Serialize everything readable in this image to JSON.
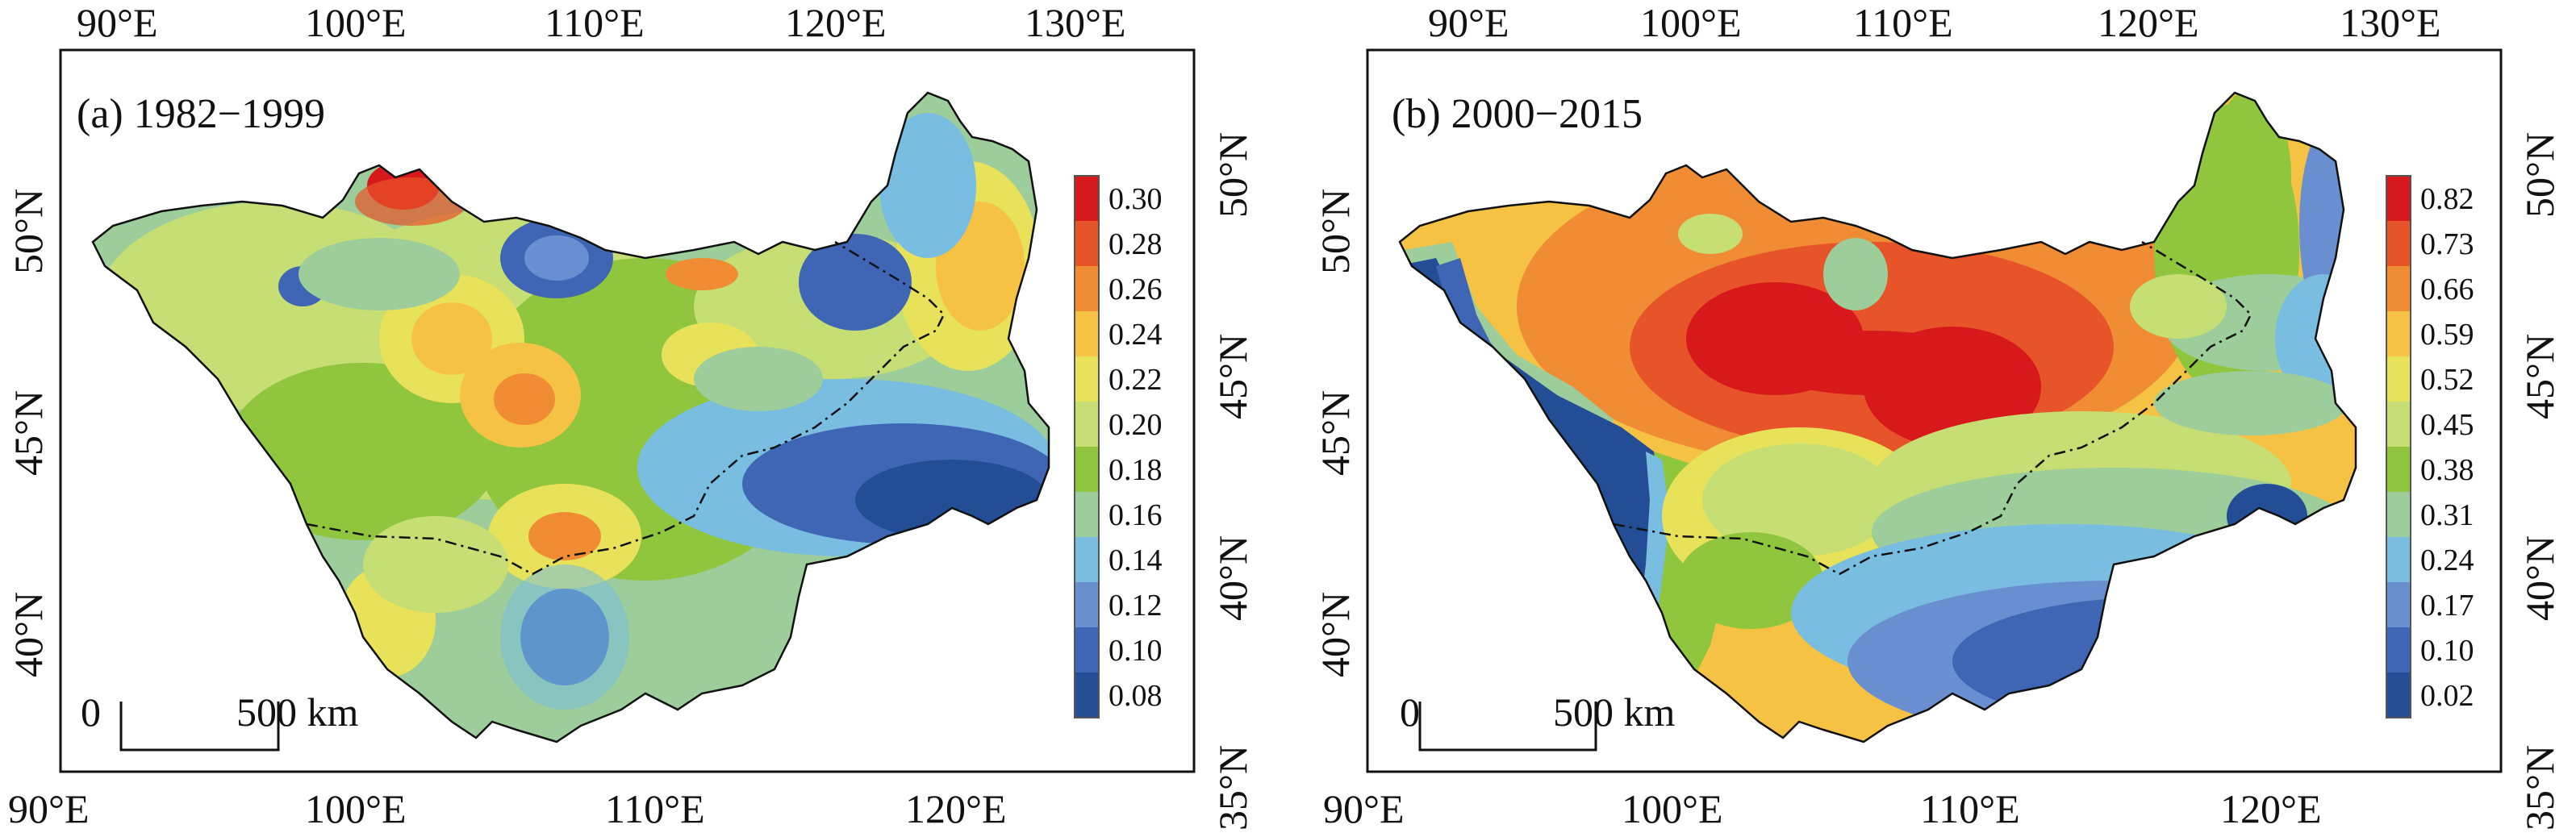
{
  "panels": [
    {
      "label": "(a) 1982−1999",
      "top_lon_ticks": [
        "90°E",
        "100°E",
        "110°E",
        "120°E",
        "130°E"
      ],
      "bottom_lon_ticks": [
        "90°E",
        "100°E",
        "110°E",
        "120°E"
      ],
      "right_lat_ticks": [
        "50°N",
        "45°N",
        "40°N",
        "35°N"
      ],
      "left_lat_ticks": [
        "50°N",
        "45°N",
        "40°N"
      ],
      "scale_bar": {
        "start": "0",
        "end": "500 km"
      },
      "legend": {
        "values": [
          "0.30",
          "0.28",
          "0.26",
          "0.24",
          "0.22",
          "0.20",
          "0.18",
          "0.16",
          "0.14",
          "0.12",
          "0.10",
          "0.08"
        ],
        "colors": [
          "#d7191c",
          "#e8542a",
          "#f08c33",
          "#f6c244",
          "#e7e25a",
          "#c6de73",
          "#8fc63e",
          "#9ccd9a",
          "#79bde0",
          "#6a8fd0",
          "#3f66b4",
          "#234e95"
        ]
      }
    },
    {
      "label": "(b) 2000−2015",
      "top_lon_ticks": [
        "90°E",
        "100°E",
        "110°E",
        "120°E",
        "130°E"
      ],
      "bottom_lon_ticks": [
        "90°E",
        "100°E",
        "110°E",
        "120°E"
      ],
      "right_lat_ticks": [
        "50°N",
        "45°N",
        "40°N",
        "35°N"
      ],
      "left_lat_ticks": [
        "50°N",
        "45°N",
        "40°N"
      ],
      "scale_bar": {
        "start": "0",
        "end": "500 km"
      },
      "legend": {
        "values": [
          "0.82",
          "0.73",
          "0.66",
          "0.59",
          "0.52",
          "0.45",
          "0.38",
          "0.31",
          "0.24",
          "0.17",
          "0.10",
          "0.02"
        ],
        "colors": [
          "#d7191c",
          "#e8542a",
          "#f08c33",
          "#f6c244",
          "#e7e25a",
          "#c6de73",
          "#8fc63e",
          "#9ccd9a",
          "#79bde0",
          "#6a8fd0",
          "#3f66b4",
          "#234e95"
        ]
      }
    }
  ]
}
